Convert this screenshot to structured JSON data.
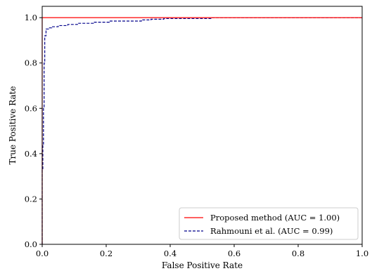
{
  "chart_data": {
    "type": "line",
    "title": "",
    "xlabel": "False Positive Rate",
    "ylabel": "True Positive Rate",
    "xlim": [
      0.0,
      1.0
    ],
    "ylim": [
      0.0,
      1.05
    ],
    "xticks": [
      "0.0",
      "0.2",
      "0.4",
      "0.6",
      "0.8",
      "1.0"
    ],
    "yticks": [
      "0.0",
      "0.2",
      "0.4",
      "0.6",
      "0.8",
      "1.0"
    ],
    "grid": false,
    "legend_position": "lower-right",
    "series": [
      {
        "name": "Proposed method (AUC = 1.00)",
        "color": "#ff0000",
        "style": "solid",
        "x": [
          0.0,
          0.0,
          1.0
        ],
        "y": [
          0.0,
          1.0,
          1.0
        ]
      },
      {
        "name": "Rahmouni et al. (AUC = 0.99)",
        "color": "#00008b",
        "style": "dashed",
        "x": [
          0.0,
          0.0,
          0.002,
          0.002,
          0.004,
          0.004,
          0.006,
          0.006,
          0.008,
          0.008,
          0.012,
          0.012,
          0.02,
          0.02,
          0.03,
          0.03,
          0.05,
          0.05,
          0.08,
          0.08,
          0.11,
          0.11,
          0.16,
          0.16,
          0.21,
          0.21,
          0.31,
          0.31,
          0.34,
          0.34,
          0.38,
          0.38,
          0.53,
          0.53,
          1.0
        ],
        "y": [
          0.0,
          0.33,
          0.33,
          0.44,
          0.44,
          0.6,
          0.6,
          0.8,
          0.8,
          0.92,
          0.92,
          0.95,
          0.95,
          0.955,
          0.955,
          0.96,
          0.96,
          0.965,
          0.965,
          0.97,
          0.97,
          0.975,
          0.975,
          0.98,
          0.98,
          0.985,
          0.985,
          0.99,
          0.99,
          0.993,
          0.993,
          0.996,
          0.996,
          1.0,
          1.0
        ]
      }
    ]
  }
}
